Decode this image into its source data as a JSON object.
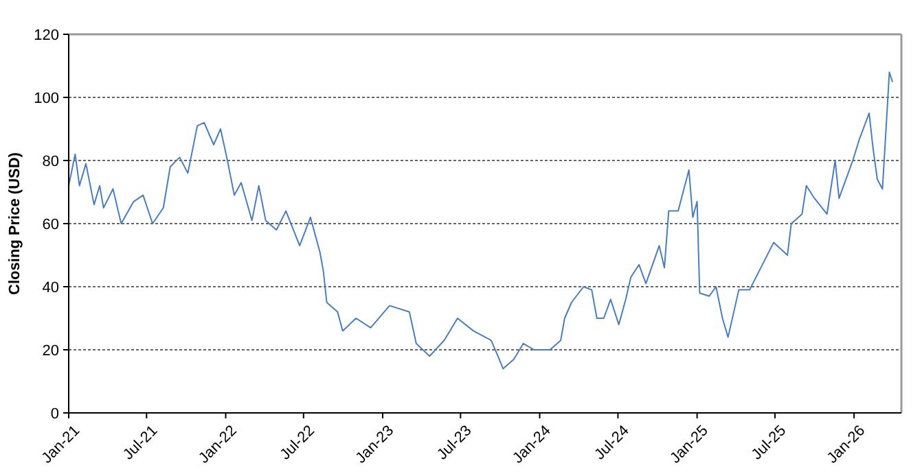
{
  "chart_data": {
    "type": "line",
    "ylabel": "Closing Price (USD)",
    "grid": "y",
    "line_style": "solid",
    "marker": "none",
    "xlim": [
      "2021-01-01",
      "2026-04-21"
    ],
    "ylim": [
      0,
      120
    ],
    "yticks": [
      0,
      20,
      40,
      60,
      80,
      100,
      120
    ],
    "xticks": [
      {
        "value": "2021-01-01",
        "label": "Jan-21"
      },
      {
        "value": "2021-07-01",
        "label": "Jul-21"
      },
      {
        "value": "2022-01-01",
        "label": "Jan-22"
      },
      {
        "value": "2022-07-01",
        "label": "Jul-22"
      },
      {
        "value": "2023-01-01",
        "label": "Jan-23"
      },
      {
        "value": "2023-07-01",
        "label": "Jul-23"
      },
      {
        "value": "2024-01-01",
        "label": "Jan-24"
      },
      {
        "value": "2024-07-01",
        "label": "Jul-24"
      },
      {
        "value": "2025-01-01",
        "label": "Jan-25"
      },
      {
        "value": "2025-07-01",
        "label": "Jul-25"
      },
      {
        "value": "2026-01-01",
        "label": "Jan-26"
      }
    ],
    "x": [
      "2021-01-01",
      "2021-01-16",
      "2021-01-26",
      "2021-02-10",
      "2021-03-01",
      "2021-03-14",
      "2021-03-23",
      "2021-04-14",
      "2021-05-03",
      "2021-06-01",
      "2021-06-23",
      "2021-07-15",
      "2021-08-09",
      "2021-08-25",
      "2021-09-16",
      "2021-10-05",
      "2021-10-27",
      "2021-11-12",
      "2021-12-04",
      "2021-12-20",
      "2022-01-05",
      "2022-01-21",
      "2022-02-06",
      "2022-03-03",
      "2022-03-19",
      "2022-04-04",
      "2022-04-29",
      "2022-05-21",
      "2022-06-22",
      "2022-07-17",
      "2022-08-08",
      "2022-08-16",
      "2022-08-24",
      "2022-09-18",
      "2022-09-30",
      "2022-10-31",
      "2022-12-04",
      "2023-01-17",
      "2023-03-04",
      "2023-03-20",
      "2023-04-20",
      "2023-05-24",
      "2023-06-24",
      "2023-07-31",
      "2023-09-10",
      "2023-09-26",
      "2023-10-08",
      "2023-11-02",
      "2023-11-24",
      "2023-12-19",
      "2024-01-25",
      "2024-02-19",
      "2024-02-28",
      "2024-03-15",
      "2024-04-12",
      "2024-05-01",
      "2024-05-13",
      "2024-05-29",
      "2024-06-14",
      "2024-07-03",
      "2024-07-19",
      "2024-07-31",
      "2024-08-19",
      "2024-09-04",
      "2024-10-05",
      "2024-10-17",
      "2024-10-27",
      "2024-11-18",
      "2024-12-13",
      "2024-12-22",
      "2025-01-01",
      "2025-01-07",
      "2025-01-29",
      "2025-02-14",
      "2025-03-01",
      "2025-03-14",
      "2025-04-08",
      "2025-05-03",
      "2025-06-28",
      "2025-07-30",
      "2025-08-08",
      "2025-09-02",
      "2025-09-12",
      "2025-10-01",
      "2025-10-30",
      "2025-11-18",
      "2025-11-27",
      "2025-12-29",
      "2026-01-14",
      "2026-02-05",
      "2026-02-14",
      "2026-02-24",
      "2026-03-08",
      "2026-03-15",
      "2026-03-24",
      "2026-03-31"
    ],
    "series": [
      {
        "color": "#4a7ebb",
        "values": [
          72,
          82,
          72,
          79,
          66,
          72,
          65,
          71,
          60,
          67,
          69,
          60,
          65,
          78,
          81,
          76,
          91,
          92,
          85,
          90,
          80,
          69,
          73,
          61,
          72,
          61,
          58,
          64,
          53,
          62,
          51,
          45,
          35,
          32,
          26,
          30,
          27,
          34,
          32,
          22,
          18,
          23,
          30,
          26,
          23,
          18,
          14,
          17,
          22,
          20,
          20,
          23,
          30,
          35,
          40,
          39,
          30,
          30,
          36,
          28,
          36,
          43,
          47,
          41,
          53,
          46,
          64,
          64,
          77,
          62,
          67,
          38,
          37,
          40,
          30,
          24,
          39,
          39,
          54,
          50,
          60,
          63,
          72,
          68,
          63,
          80,
          68,
          80,
          87,
          95,
          84,
          74,
          71,
          87,
          108,
          105
        ]
      }
    ]
  }
}
